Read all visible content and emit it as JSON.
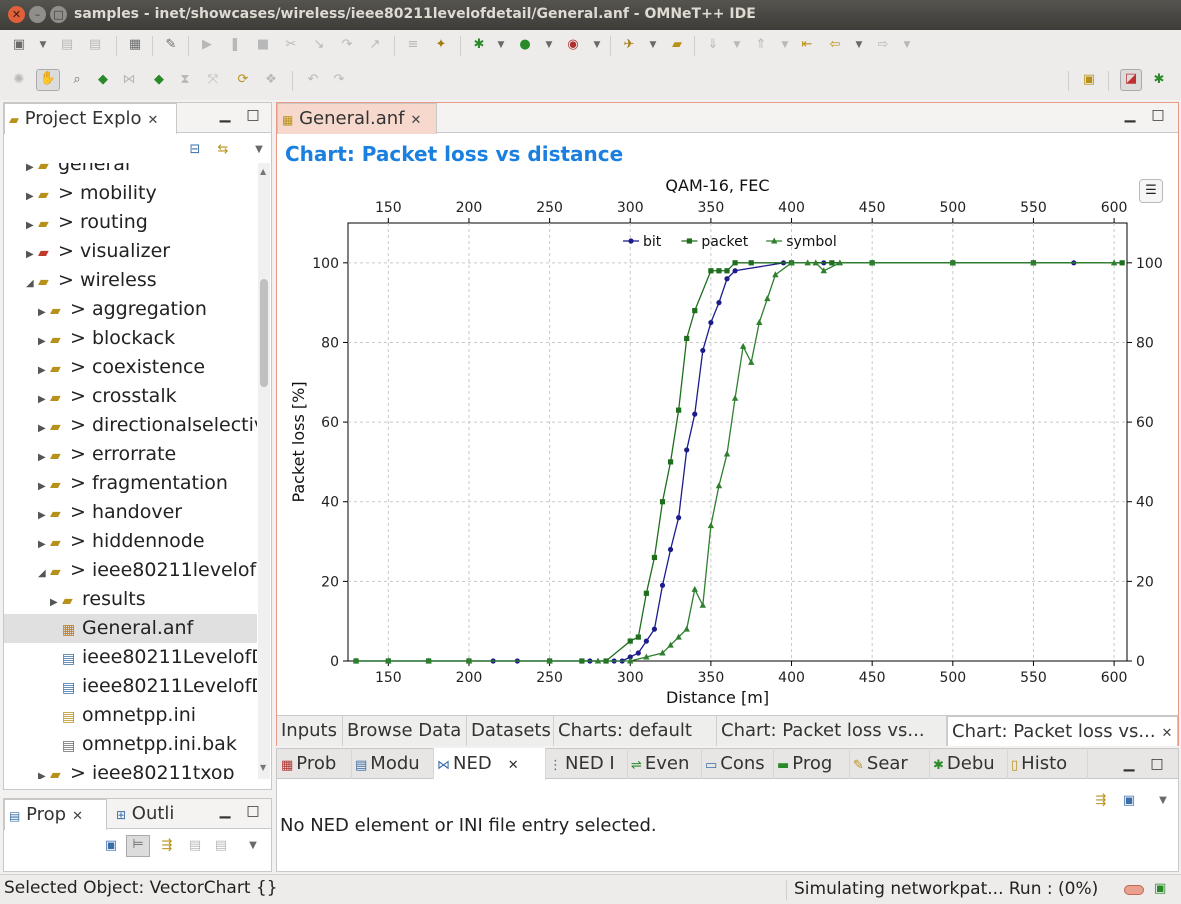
{
  "window": {
    "title": "samples - inet/showcases/wireless/ieee80211levelofdetail/General.anf - OMNeT++ IDE"
  },
  "quick_access": {
    "placeholder": "Quick Access"
  },
  "project_explorer": {
    "tab_label": "Project Explo",
    "items": [
      {
        "label": "general",
        "level": 1,
        "kind": "folder-closed"
      },
      {
        "label": "> mobility",
        "level": 1,
        "kind": "folder-closed"
      },
      {
        "label": "> routing",
        "level": 1,
        "kind": "folder-closed"
      },
      {
        "label": "> visualizer",
        "level": 1,
        "kind": "folder-error"
      },
      {
        "label": "> wireless",
        "level": 1,
        "kind": "folder-open"
      },
      {
        "label": "> aggregation",
        "level": 2,
        "kind": "folder-closed"
      },
      {
        "label": "> blockack",
        "level": 2,
        "kind": "folder-closed"
      },
      {
        "label": "> coexistence",
        "level": 2,
        "kind": "folder-closed"
      },
      {
        "label": "> crosstalk",
        "level": 2,
        "kind": "folder-closed"
      },
      {
        "label": "> directionalselectivity",
        "level": 2,
        "kind": "folder-closed"
      },
      {
        "label": "> errorrate",
        "level": 2,
        "kind": "folder-closed"
      },
      {
        "label": "> fragmentation",
        "level": 2,
        "kind": "folder-closed"
      },
      {
        "label": "> handover",
        "level": 2,
        "kind": "folder-closed"
      },
      {
        "label": "> hiddennode",
        "level": 2,
        "kind": "folder-closed"
      },
      {
        "label": "> ieee80211levelofdetail",
        "level": 2,
        "kind": "folder-open"
      },
      {
        "label": "results",
        "level": 3,
        "kind": "folder-closed"
      },
      {
        "label": "General.anf",
        "level": 3,
        "kind": "anf-file",
        "selected": true
      },
      {
        "label": "ieee80211LevelofDetail.ned",
        "level": 3,
        "kind": "ned-file"
      },
      {
        "label": "ieee80211LevelofDetail.ned",
        "level": 3,
        "kind": "ned-file"
      },
      {
        "label": "omnetpp.ini",
        "level": 3,
        "kind": "ini-file"
      },
      {
        "label": "omnetpp.ini.bak",
        "level": 3,
        "kind": "file"
      },
      {
        "label": "> ieee80211txop",
        "level": 2,
        "kind": "folder-closed"
      }
    ]
  },
  "prop_panel": {
    "tab_prop": "Prop",
    "tab_outline": "Outli"
  },
  "editor": {
    "tab_label": "General.anf",
    "chart_heading": "Chart: Packet loss vs distance",
    "bottom_tabs": [
      "Inputs",
      "Browse Data",
      "Datasets",
      "Charts: default",
      "Chart: Packet loss vs...",
      "Chart: Packet loss vs..."
    ]
  },
  "bottom_panel": {
    "tabs": [
      "Prob",
      "Modu",
      "NED",
      "NED I",
      "Even",
      "Cons",
      "Prog",
      "Sear",
      "Debu",
      "Histo"
    ],
    "message": "No NED element or INI file entry selected."
  },
  "status": {
    "selected_object": "Selected Object: VectorChart {}",
    "progress_text": "Simulating networkpat... Run : (0%)"
  },
  "chart_data": {
    "type": "line",
    "title": "QAM-16, FEC",
    "xlabel": "Distance [m]",
    "ylabel": "Packet loss [%]",
    "xlim": [
      125,
      608
    ],
    "ylim": [
      0,
      110
    ],
    "xticks": [
      150,
      200,
      250,
      300,
      350,
      400,
      450,
      500,
      550,
      600
    ],
    "yticks": [
      0,
      20,
      40,
      60,
      80,
      100
    ],
    "grid": true,
    "legend_position": "top-center",
    "series": [
      {
        "name": "bit",
        "color": "#1c1c8c",
        "marker": "circle",
        "x": [
          130,
          150,
          175,
          200,
          215,
          230,
          250,
          275,
          290,
          295,
          300,
          305,
          310,
          315,
          320,
          325,
          330,
          335,
          340,
          345,
          350,
          355,
          360,
          365,
          395,
          420,
          450,
          500,
          550,
          575
        ],
        "y": [
          0,
          0,
          0,
          0,
          0,
          0,
          0,
          0,
          0,
          0,
          1,
          2,
          5,
          8,
          19,
          28,
          36,
          53,
          62,
          78,
          85,
          90,
          96,
          98,
          100,
          100,
          100,
          100,
          100,
          100
        ]
      },
      {
        "name": "packet",
        "color": "#1e6e1e",
        "marker": "square",
        "x": [
          130,
          150,
          175,
          200,
          250,
          270,
          285,
          300,
          305,
          310,
          315,
          320,
          325,
          330,
          335,
          340,
          350,
          355,
          360,
          365,
          375,
          400,
          425,
          450,
          500,
          550,
          605
        ],
        "y": [
          0,
          0,
          0,
          0,
          0,
          0,
          0,
          5,
          6,
          17,
          26,
          40,
          50,
          63,
          81,
          88,
          98,
          98,
          98,
          100,
          100,
          100,
          100,
          100,
          100,
          100,
          100
        ]
      },
      {
        "name": "symbol",
        "color": "#2f7f2f",
        "marker": "triangle",
        "x": [
          130,
          150,
          175,
          200,
          250,
          280,
          300,
          310,
          320,
          325,
          330,
          335,
          340,
          345,
          350,
          355,
          360,
          365,
          370,
          375,
          380,
          385,
          390,
          400,
          410,
          415,
          420,
          430,
          450,
          500,
          550,
          600
        ],
        "y": [
          0,
          0,
          0,
          0,
          0,
          0,
          0,
          1,
          2,
          4,
          6,
          8,
          18,
          14,
          34,
          44,
          52,
          66,
          79,
          75,
          85,
          91,
          97,
          100,
          100,
          100,
          98,
          100,
          100,
          100,
          100,
          100
        ]
      }
    ]
  }
}
